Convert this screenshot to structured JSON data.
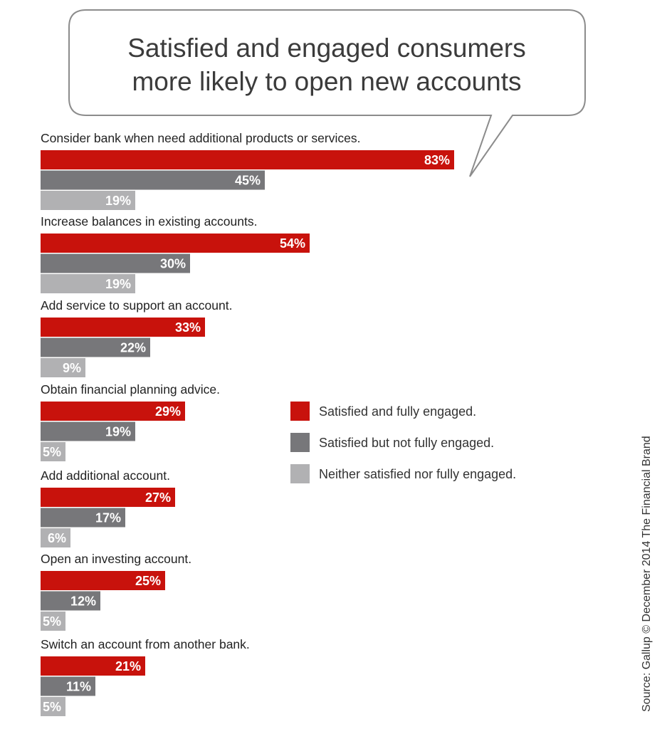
{
  "chart_data": {
    "type": "bar",
    "orientation": "horizontal",
    "title": "Satisfied and engaged consumers more likely to open new accounts",
    "title_lines": [
      "Satisfied and engaged consumers",
      "more likely to open new accounts"
    ],
    "categories": [
      "Consider bank when need additional products or services.",
      "Increase balances in existing accounts.",
      "Add service to support an account.",
      "Obtain financial planning advice.",
      "Add additional account.",
      "Open an investing account.",
      "Switch an account from another bank."
    ],
    "series": [
      {
        "name": "Satisfied and fully engaged.",
        "color": "#c8120c",
        "values": [
          83,
          54,
          33,
          29,
          27,
          25,
          21
        ]
      },
      {
        "name": "Satisfied but not fully engaged.",
        "color": "#77777a",
        "values": [
          45,
          30,
          22,
          19,
          17,
          12,
          11
        ]
      },
      {
        "name": "Neither satisfied nor fully engaged.",
        "color": "#b1b1b3",
        "values": [
          19,
          19,
          9,
          5,
          6,
          5,
          5
        ]
      }
    ],
    "value_suffix": "%",
    "xlim": [
      0,
      100
    ],
    "grid": false,
    "legend_position": "right-middle",
    "source": "Source: Gallup © December 2014 The Financial Brand"
  }
}
